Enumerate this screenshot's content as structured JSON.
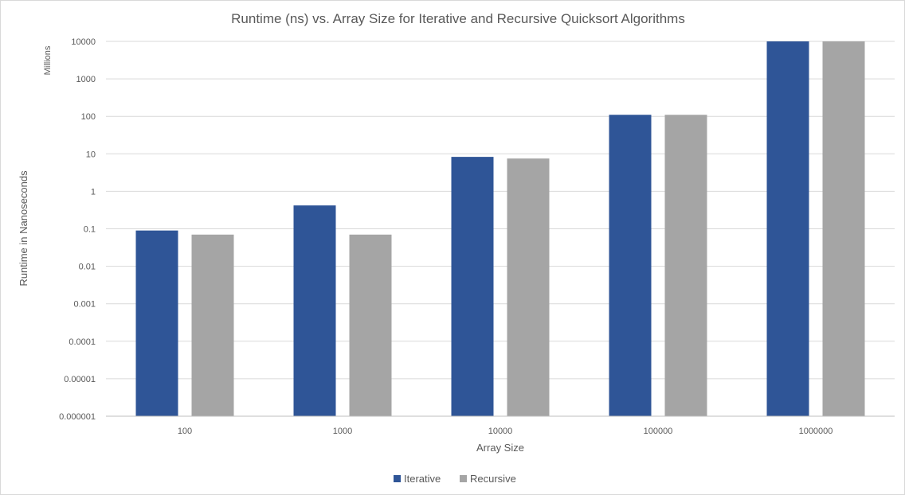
{
  "chart_data": {
    "type": "bar",
    "title": "Runtime (ns) vs. Array Size for Iterative and Recursive Quicksort Algorithms",
    "xlabel": "Array Size",
    "ylabel": "Runtime in Nanoseconds",
    "y_unit_label": "Millions",
    "y_scale": "log",
    "ylim": [
      1e-06,
      10000
    ],
    "y_ticks": [
      "0.000001",
      "0.00001",
      "0.0001",
      "0.001",
      "0.01",
      "0.1",
      "1",
      "10",
      "100",
      "1000",
      "10000"
    ],
    "categories": [
      "100",
      "1000",
      "10000",
      "100000",
      "1000000"
    ],
    "series": [
      {
        "name": "Iterative",
        "color": "#2F5597",
        "values": [
          0.09,
          0.42,
          8.3,
          110,
          10000
        ]
      },
      {
        "name": "Recursive",
        "color": "#A5A5A5",
        "values": [
          0.07,
          0.07,
          7.5,
          110,
          10000
        ]
      }
    ],
    "grid": true,
    "legend_position": "bottom"
  }
}
